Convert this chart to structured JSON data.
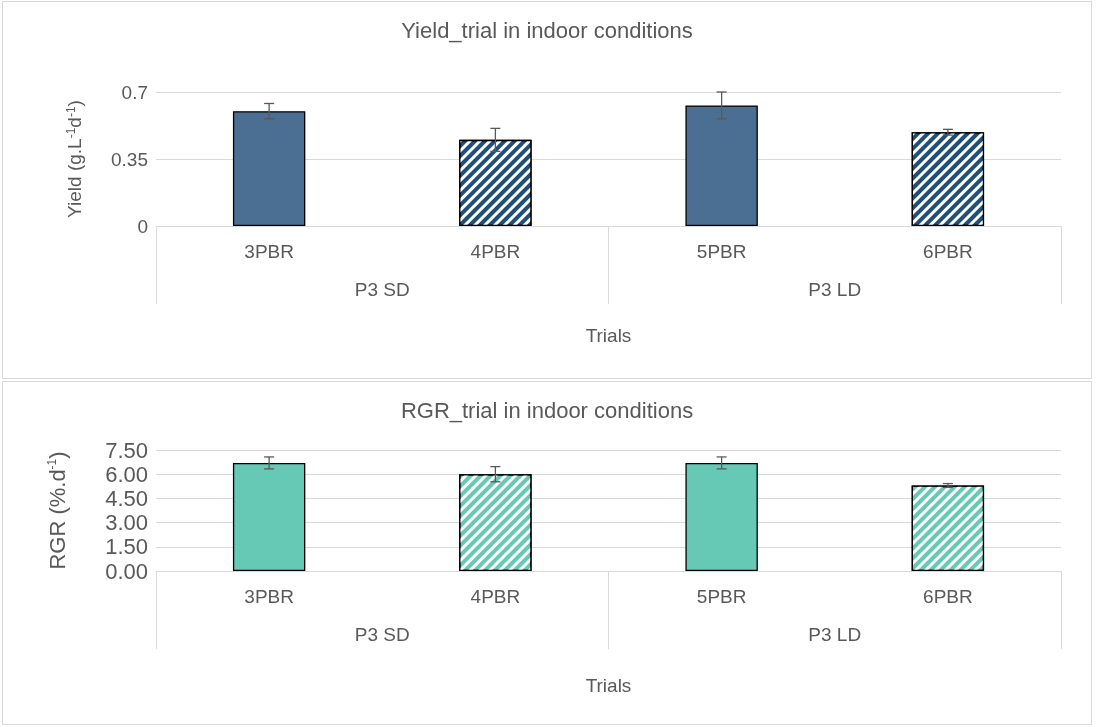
{
  "chart_data": [
    {
      "type": "bar",
      "title": "Yield_trial in indoor conditions",
      "xlabel": "Trials",
      "ylabel": "Yield (g.L$^{-1}$d$^{-1}$)",
      "categories": [
        "3PBR",
        "4PBR",
        "5PBR",
        "6PBR"
      ],
      "values": [
        0.6,
        0.45,
        0.63,
        0.49
      ],
      "errors": [
        0.04,
        0.06,
        0.07,
        0.015
      ],
      "colors": [
        "#4a6f93",
        "#1f4e79",
        "#4a6f93",
        "#1f4e79"
      ],
      "ylim": [
        0,
        0.7
      ],
      "yticks": [
        0,
        0.35,
        0.7
      ],
      "grid": "y",
      "annotations": [
        "P3 SD",
        "P3 LD"
      ]
    },
    {
      "type": "bar",
      "title": "RGR_trial in indoor conditions",
      "xlabel": "Trials",
      "ylabel": "RGR (%.d$^{-1}$)",
      "categories": [
        "3PBR",
        "4PBR",
        "5PBR",
        "6PBR"
      ],
      "values": [
        6.7,
        6.0,
        6.7,
        5.3
      ],
      "errors": [
        0.37,
        0.47,
        0.37,
        0.12
      ],
      "colors": [
        "#66c9b6",
        "#66c9b6",
        "#66c9b6",
        "#66c9b6"
      ],
      "ylim": [
        0,
        7.5
      ],
      "yticks": [
        {
          "value": 0,
          "label": "0.00"
        },
        {
          "value": 1.5,
          "label": "1.50"
        },
        {
          "value": 3,
          "label": "3.00"
        },
        {
          "value": 4.5,
          "label": "4.50"
        },
        {
          "value": 6,
          "label": "6.00"
        },
        {
          "value": 7.5,
          "label": "7.50"
        }
      ],
      "grid": "y",
      "annotations": [
        "P3 SD",
        "P3 LD"
      ]
    }
  ]
}
